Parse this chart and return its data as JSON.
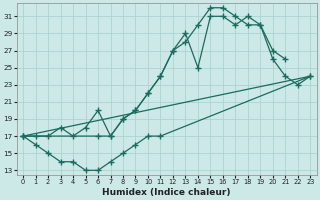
{
  "xlabel": "Humidex (Indice chaleur)",
  "bg_color": "#cce9e7",
  "grid_color": "#aad4d0",
  "line_color": "#1a6b60",
  "curve_up_x": [
    0,
    1,
    2,
    3,
    4,
    5,
    6,
    7,
    8,
    9,
    10,
    11,
    12,
    13,
    14,
    15,
    16,
    17,
    18,
    19,
    20,
    21
  ],
  "curve_up_y": [
    17,
    17,
    17,
    18,
    17,
    18,
    20,
    17,
    19,
    20,
    22,
    24,
    27,
    28,
    30,
    32,
    32,
    31,
    30,
    30,
    27,
    26
  ],
  "curve_down_x": [
    0,
    1,
    2,
    3,
    4,
    5,
    6,
    7,
    8,
    9,
    10,
    11,
    23
  ],
  "curve_down_y": [
    17,
    16,
    15,
    14,
    14,
    13,
    13,
    14,
    15,
    16,
    17,
    17,
    24
  ],
  "curve_mid_x": [
    0,
    6,
    7,
    8,
    9,
    10,
    11,
    12,
    13,
    14,
    15,
    16,
    17,
    18,
    19,
    20,
    21,
    22,
    23
  ],
  "curve_mid_y": [
    17,
    17,
    17,
    19,
    20,
    22,
    24,
    27,
    29,
    25,
    31,
    31,
    30,
    31,
    30,
    26,
    24,
    23,
    24
  ],
  "yticks": [
    13,
    15,
    17,
    19,
    21,
    23,
    25,
    27,
    29,
    31
  ],
  "xticks": [
    0,
    1,
    2,
    3,
    4,
    5,
    6,
    7,
    8,
    9,
    10,
    11,
    12,
    13,
    14,
    15,
    16,
    17,
    18,
    19,
    20,
    21,
    22,
    23
  ],
  "ylim": [
    12.5,
    32.5
  ],
  "xlim": [
    -0.5,
    23.5
  ]
}
